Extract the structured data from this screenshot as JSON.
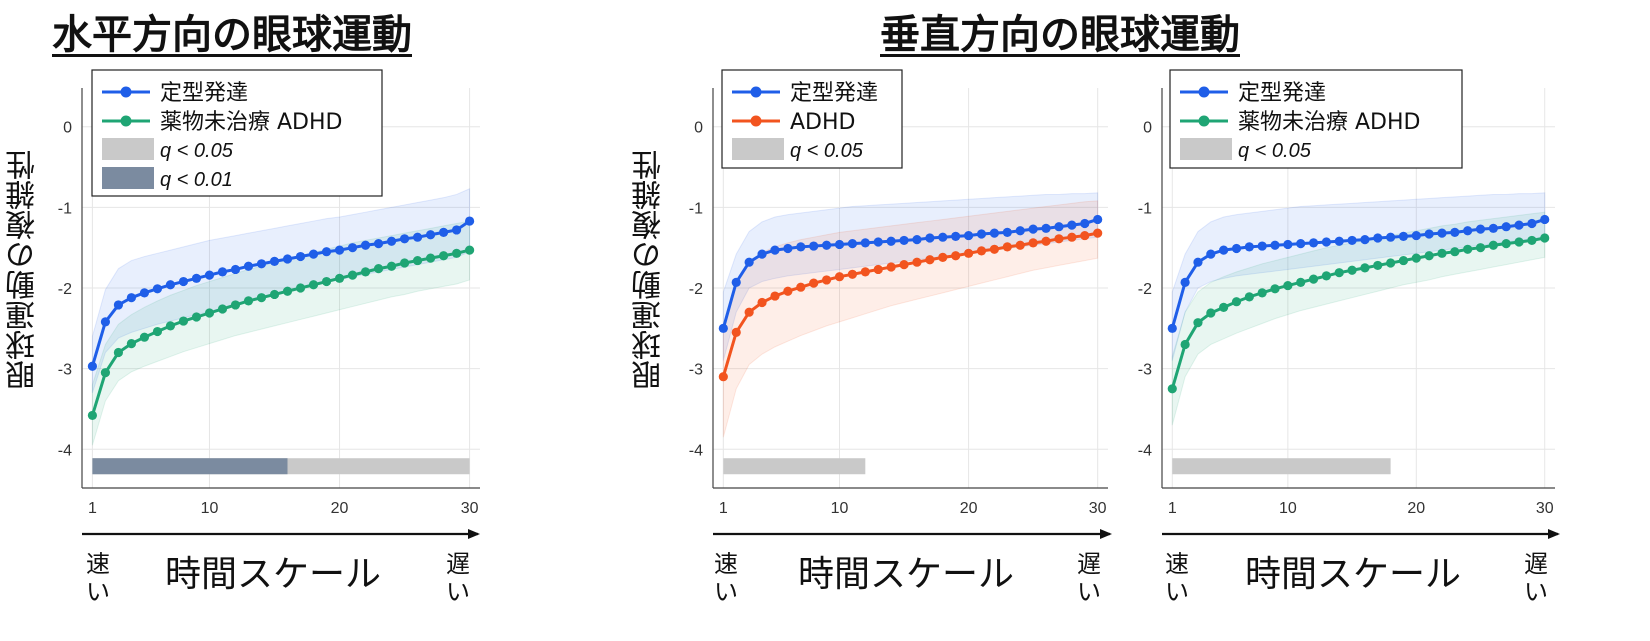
{
  "headings": {
    "horizontal": "水平方向の眼球運動",
    "vertical": "垂直方向の眼球運動"
  },
  "axis_label_y": "眼球運動の複雑性",
  "axis_label_x": "時間スケール",
  "x_end_labels": {
    "fast": "速い",
    "slow": "遅い"
  },
  "colors": {
    "td": "#1f5ee8",
    "med_naive": "#1fa574",
    "adhd": "#f2541f",
    "q05": "#c9c9c9",
    "q01": "#7b8ba0"
  },
  "chart_data": [
    {
      "type": "line",
      "title": "",
      "x": [
        1,
        2,
        3,
        4,
        5,
        6,
        7,
        8,
        9,
        10,
        11,
        12,
        13,
        14,
        15,
        16,
        17,
        18,
        19,
        20,
        21,
        22,
        23,
        24,
        25,
        26,
        27,
        28,
        29,
        30
      ],
      "xlim": [
        0.2,
        30.8
      ],
      "ylim": [
        -4.48,
        0.48
      ],
      "xticks": [
        "1",
        "10",
        "20",
        "30"
      ],
      "yticks": [
        "0",
        "-1",
        "-2",
        "-3",
        "-4"
      ],
      "grid": true,
      "legend_position": "top-left",
      "series": [
        {
          "name": "定型発達",
          "color": "#1f5ee8",
          "values": [
            -2.97,
            -2.42,
            -2.21,
            -2.12,
            -2.06,
            -2.01,
            -1.96,
            -1.92,
            -1.88,
            -1.84,
            -1.8,
            -1.77,
            -1.73,
            -1.7,
            -1.67,
            -1.64,
            -1.61,
            -1.58,
            -1.55,
            -1.53,
            -1.5,
            -1.47,
            -1.45,
            -1.42,
            -1.39,
            -1.37,
            -1.34,
            -1.31,
            -1.28,
            -1.17
          ],
          "band_upper": [
            -2.6,
            -2.02,
            -1.76,
            -1.66,
            -1.61,
            -1.57,
            -1.53,
            -1.49,
            -1.45,
            -1.41,
            -1.38,
            -1.35,
            -1.32,
            -1.29,
            -1.26,
            -1.23,
            -1.2,
            -1.17,
            -1.14,
            -1.12,
            -1.09,
            -1.06,
            -1.03,
            -1.0,
            -0.97,
            -0.94,
            -0.91,
            -0.88,
            -0.84,
            -0.77
          ],
          "band_lower": [
            -3.3,
            -2.8,
            -2.62,
            -2.55,
            -2.5,
            -2.45,
            -2.41,
            -2.37,
            -2.33,
            -2.29,
            -2.25,
            -2.21,
            -2.17,
            -2.13,
            -2.09,
            -2.05,
            -2.01,
            -1.97,
            -1.93,
            -1.9,
            -1.86,
            -1.83,
            -1.8,
            -1.77,
            -1.74,
            -1.71,
            -1.68,
            -1.65,
            -1.62,
            -1.55
          ]
        },
        {
          "name": "薬物未治療 ADHD",
          "color": "#1fa574",
          "values": [
            -3.58,
            -3.05,
            -2.8,
            -2.69,
            -2.61,
            -2.54,
            -2.47,
            -2.41,
            -2.36,
            -2.31,
            -2.26,
            -2.21,
            -2.16,
            -2.12,
            -2.08,
            -2.04,
            -2.0,
            -1.96,
            -1.92,
            -1.88,
            -1.84,
            -1.8,
            -1.76,
            -1.73,
            -1.69,
            -1.66,
            -1.63,
            -1.6,
            -1.57,
            -1.53
          ],
          "band_upper": [
            -3.2,
            -2.7,
            -2.45,
            -2.33,
            -2.24,
            -2.16,
            -2.09,
            -2.03,
            -1.97,
            -1.92,
            -1.87,
            -1.82,
            -1.77,
            -1.73,
            -1.68,
            -1.64,
            -1.6,
            -1.56,
            -1.52,
            -1.48,
            -1.44,
            -1.41,
            -1.38,
            -1.35,
            -1.32,
            -1.29,
            -1.26,
            -1.23,
            -1.2,
            -1.17
          ],
          "band_lower": [
            -3.95,
            -3.4,
            -3.15,
            -3.04,
            -2.97,
            -2.91,
            -2.85,
            -2.79,
            -2.74,
            -2.69,
            -2.64,
            -2.59,
            -2.55,
            -2.51,
            -2.47,
            -2.43,
            -2.39,
            -2.35,
            -2.31,
            -2.27,
            -2.23,
            -2.19,
            -2.15,
            -2.11,
            -2.08,
            -2.04,
            -2.01,
            -1.98,
            -1.95,
            -1.9
          ]
        }
      ],
      "legend_patches": [
        {
          "label": "q < 0.05",
          "color": "#c9c9c9"
        },
        {
          "label": "q < 0.01",
          "color": "#7b8ba0"
        }
      ],
      "significance_bars": [
        {
          "level": "q < 0.05",
          "from": 1,
          "to": 30
        },
        {
          "level": "q < 0.01",
          "from": 1,
          "to": 16
        }
      ]
    },
    {
      "type": "line",
      "title": "",
      "x": [
        1,
        2,
        3,
        4,
        5,
        6,
        7,
        8,
        9,
        10,
        11,
        12,
        13,
        14,
        15,
        16,
        17,
        18,
        19,
        20,
        21,
        22,
        23,
        24,
        25,
        26,
        27,
        28,
        29,
        30
      ],
      "xlim": [
        0.2,
        30.8
      ],
      "ylim": [
        -4.48,
        0.48
      ],
      "xticks": [
        "1",
        "10",
        "20",
        "30"
      ],
      "yticks": [
        "0",
        "-1",
        "-2",
        "-3",
        "-4"
      ],
      "grid": true,
      "legend_position": "top-left",
      "series": [
        {
          "name": "定型発達",
          "color": "#1f5ee8",
          "values": [
            -2.5,
            -1.93,
            -1.68,
            -1.58,
            -1.53,
            -1.51,
            -1.49,
            -1.48,
            -1.47,
            -1.46,
            -1.45,
            -1.44,
            -1.43,
            -1.42,
            -1.41,
            -1.4,
            -1.38,
            -1.37,
            -1.36,
            -1.35,
            -1.33,
            -1.32,
            -1.31,
            -1.29,
            -1.27,
            -1.26,
            -1.24,
            -1.22,
            -1.2,
            -1.15
          ],
          "band_upper": [
            -2.05,
            -1.58,
            -1.3,
            -1.18,
            -1.12,
            -1.09,
            -1.07,
            -1.05,
            -1.03,
            -1.01,
            -0.99,
            -0.98,
            -0.97,
            -0.96,
            -0.95,
            -0.94,
            -0.93,
            -0.92,
            -0.91,
            -0.9,
            -0.89,
            -0.88,
            -0.87,
            -0.86,
            -0.85,
            -0.84,
            -0.84,
            -0.83,
            -0.83,
            -0.82
          ],
          "band_lower": [
            -2.9,
            -2.3,
            -2.0,
            -1.92,
            -1.88,
            -1.85,
            -1.83,
            -1.81,
            -1.79,
            -1.77,
            -1.75,
            -1.73,
            -1.71,
            -1.69,
            -1.67,
            -1.65,
            -1.63,
            -1.61,
            -1.59,
            -1.57,
            -1.55,
            -1.53,
            -1.51,
            -1.49,
            -1.47,
            -1.45,
            -1.43,
            -1.41,
            -1.39,
            -1.37
          ]
        },
        {
          "name": "ADHD",
          "color": "#f2541f",
          "values": [
            -3.1,
            -2.55,
            -2.3,
            -2.18,
            -2.1,
            -2.04,
            -1.99,
            -1.94,
            -1.9,
            -1.86,
            -1.83,
            -1.8,
            -1.77,
            -1.74,
            -1.71,
            -1.68,
            -1.65,
            -1.62,
            -1.6,
            -1.57,
            -1.54,
            -1.52,
            -1.49,
            -1.47,
            -1.44,
            -1.42,
            -1.39,
            -1.37,
            -1.35,
            -1.32
          ],
          "band_upper": [
            -2.5,
            -1.95,
            -1.68,
            -1.56,
            -1.49,
            -1.44,
            -1.4,
            -1.37,
            -1.34,
            -1.31,
            -1.29,
            -1.27,
            -1.25,
            -1.23,
            -1.21,
            -1.19,
            -1.17,
            -1.15,
            -1.13,
            -1.11,
            -1.09,
            -1.07,
            -1.05,
            -1.03,
            -1.01,
            -0.99,
            -0.97,
            -0.95,
            -0.93,
            -0.92
          ],
          "band_lower": [
            -3.85,
            -3.25,
            -2.95,
            -2.82,
            -2.73,
            -2.66,
            -2.59,
            -2.53,
            -2.47,
            -2.42,
            -2.37,
            -2.32,
            -2.27,
            -2.22,
            -2.18,
            -2.14,
            -2.1,
            -2.06,
            -2.02,
            -1.98,
            -1.94,
            -1.9,
            -1.86,
            -1.82,
            -1.78,
            -1.75,
            -1.72,
            -1.69,
            -1.66,
            -1.63
          ]
        }
      ],
      "legend_patches": [
        {
          "label": "q < 0.05",
          "color": "#c9c9c9"
        }
      ],
      "significance_bars": [
        {
          "level": "q < 0.05",
          "from": 1,
          "to": 12
        }
      ]
    },
    {
      "type": "line",
      "title": "",
      "x": [
        1,
        2,
        3,
        4,
        5,
        6,
        7,
        8,
        9,
        10,
        11,
        12,
        13,
        14,
        15,
        16,
        17,
        18,
        19,
        20,
        21,
        22,
        23,
        24,
        25,
        26,
        27,
        28,
        29,
        30
      ],
      "xlim": [
        0.2,
        30.8
      ],
      "ylim": [
        -4.48,
        0.48
      ],
      "xticks": [
        "1",
        "10",
        "20",
        "30"
      ],
      "yticks": [
        "0",
        "-1",
        "-2",
        "-3",
        "-4"
      ],
      "grid": true,
      "legend_position": "top-left",
      "series": [
        {
          "name": "定型発達",
          "color": "#1f5ee8",
          "values": [
            -2.5,
            -1.93,
            -1.68,
            -1.58,
            -1.53,
            -1.51,
            -1.49,
            -1.48,
            -1.47,
            -1.46,
            -1.45,
            -1.44,
            -1.43,
            -1.42,
            -1.41,
            -1.4,
            -1.38,
            -1.37,
            -1.36,
            -1.35,
            -1.33,
            -1.32,
            -1.31,
            -1.29,
            -1.27,
            -1.26,
            -1.24,
            -1.22,
            -1.2,
            -1.15
          ],
          "band_upper": [
            -2.05,
            -1.58,
            -1.3,
            -1.18,
            -1.12,
            -1.09,
            -1.07,
            -1.05,
            -1.03,
            -1.01,
            -0.99,
            -0.98,
            -0.97,
            -0.96,
            -0.95,
            -0.94,
            -0.93,
            -0.92,
            -0.91,
            -0.9,
            -0.89,
            -0.88,
            -0.87,
            -0.86,
            -0.85,
            -0.84,
            -0.84,
            -0.83,
            -0.83,
            -0.82
          ],
          "band_lower": [
            -2.9,
            -2.3,
            -2.0,
            -1.92,
            -1.88,
            -1.85,
            -1.83,
            -1.81,
            -1.79,
            -1.77,
            -1.75,
            -1.73,
            -1.71,
            -1.69,
            -1.67,
            -1.65,
            -1.63,
            -1.61,
            -1.59,
            -1.57,
            -1.55,
            -1.53,
            -1.51,
            -1.49,
            -1.47,
            -1.45,
            -1.43,
            -1.41,
            -1.39,
            -1.37
          ]
        },
        {
          "name": "薬物未治療 ADHD",
          "color": "#1fa574",
          "values": [
            -3.25,
            -2.7,
            -2.43,
            -2.31,
            -2.24,
            -2.17,
            -2.11,
            -2.06,
            -2.01,
            -1.97,
            -1.93,
            -1.89,
            -1.85,
            -1.81,
            -1.78,
            -1.75,
            -1.72,
            -1.69,
            -1.66,
            -1.63,
            -1.6,
            -1.57,
            -1.55,
            -1.52,
            -1.5,
            -1.47,
            -1.45,
            -1.43,
            -1.41,
            -1.38
          ],
          "band_upper": [
            -2.85,
            -2.3,
            -2.05,
            -1.93,
            -1.86,
            -1.8,
            -1.75,
            -1.7,
            -1.66,
            -1.62,
            -1.58,
            -1.54,
            -1.5,
            -1.47,
            -1.44,
            -1.41,
            -1.38,
            -1.35,
            -1.32,
            -1.29,
            -1.26,
            -1.23,
            -1.21,
            -1.18,
            -1.16,
            -1.14,
            -1.12,
            -1.1,
            -1.08,
            -1.06
          ],
          "band_lower": [
            -3.7,
            -3.1,
            -2.82,
            -2.7,
            -2.63,
            -2.56,
            -2.5,
            -2.44,
            -2.38,
            -2.33,
            -2.28,
            -2.24,
            -2.2,
            -2.16,
            -2.12,
            -2.08,
            -2.04,
            -2.0,
            -1.96,
            -1.93,
            -1.9,
            -1.86,
            -1.83,
            -1.8,
            -1.77,
            -1.74,
            -1.71,
            -1.68,
            -1.65,
            -1.62
          ]
        }
      ],
      "legend_patches": [
        {
          "label": "q < 0.05",
          "color": "#c9c9c9"
        }
      ],
      "significance_bars": [
        {
          "level": "q < 0.05",
          "from": 1,
          "to": 18
        }
      ]
    }
  ]
}
